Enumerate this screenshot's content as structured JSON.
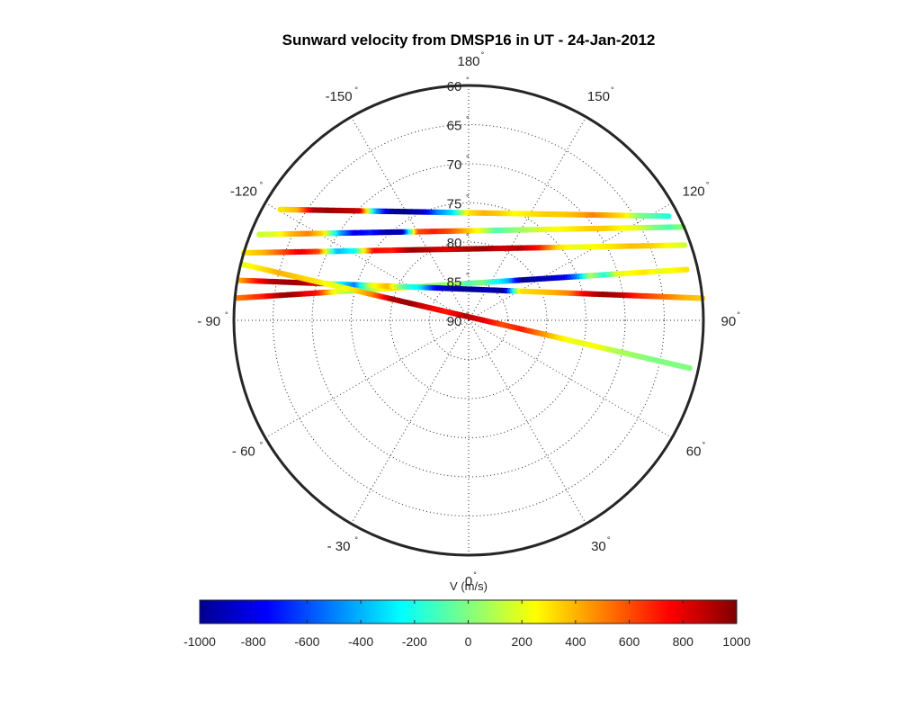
{
  "chart_data": {
    "type": "polar-scatter",
    "title": "Sunward velocity from DMSP16 in UT - 24-Jan-2012",
    "radial_axis": {
      "quantity": "magnetic latitude",
      "range": [
        60,
        90
      ],
      "tick_labels": [
        "60",
        "65",
        "70",
        "75",
        "80",
        "85",
        "90"
      ],
      "degree_symbol": "°"
    },
    "angular_axis": {
      "tick_values": [
        180,
        150,
        120,
        90,
        60,
        30,
        0,
        -30,
        -60,
        -90,
        -120,
        -150
      ],
      "tick_labels": [
        "180",
        "150",
        "120",
        "90",
        "60",
        "30",
        "0",
        "- 30",
        "- 60",
        "- 90",
        "-120",
        "-150"
      ],
      "zero_position": "bottom",
      "positive_direction": "counterclockwise",
      "grid": "dotted"
    },
    "colorbar": {
      "label": "V (m/s)",
      "colormap": "jet",
      "range": [
        -1000,
        1000
      ],
      "tick_labels": [
        "-1000",
        "-800",
        "-600",
        "-400",
        "-200",
        "0",
        "200",
        "400",
        "600",
        "800",
        "1000"
      ],
      "position": "bottom"
    },
    "colormap_stops": [
      "#00008f",
      "#0000ff",
      "#0080ff",
      "#00ffff",
      "#80ff80",
      "#ffff00",
      "#ff8000",
      "#ff0000",
      "#800000"
    ],
    "passes": [
      {
        "start": [
          109.2,
          60.8
        ],
        "end": [
          -106.7,
          60.0
        ],
        "values": [
          150,
          250,
          350,
          380,
          300,
          250,
          200,
          320,
          700,
          900,
          850,
          950,
          900,
          800,
          900,
          950,
          700,
          750,
          -200,
          -400,
          600,
          800,
          600,
          400,
          300
        ]
      },
      {
        "start": [
          113.5,
          60.1
        ],
        "end": [
          -112.3,
          61.1
        ],
        "values": [
          50,
          -100,
          0,
          200,
          250,
          350,
          350,
          300,
          250,
          200,
          100,
          0,
          -100,
          200,
          400,
          600,
          700,
          600,
          -900,
          -950,
          -700,
          -800,
          -400,
          300,
          500,
          400,
          200,
          150
        ]
      },
      {
        "start": [
          117.5,
          61.2
        ],
        "end": [
          -120.5,
          62.1
        ],
        "values": [
          -200,
          -100,
          0,
          300,
          400,
          500,
          400,
          350,
          350,
          300,
          250,
          350,
          400,
          300,
          -300,
          -500,
          -900,
          -1000,
          -950,
          -400,
          850,
          900,
          950,
          900,
          400,
          300
        ]
      },
      {
        "start": [
          -95.5,
          60.3
        ],
        "end": [
          103.1,
          61.4
        ],
        "values": [
          500,
          600,
          700,
          900,
          950,
          800,
          700,
          300,
          100,
          -200,
          100,
          300,
          300,
          200,
          100,
          0,
          100,
          -100,
          0,
          -200,
          -400,
          -1000,
          -950,
          -900,
          -800,
          -500,
          100,
          -200,
          200,
          250,
          300,
          200,
          250,
          300
        ]
      },
      {
        "start": [
          -99.9,
          60.3
        ],
        "end": [
          95.4,
          60.0
        ],
        "values": [
          400,
          700,
          900,
          950,
          900,
          700,
          -200,
          -500,
          200,
          400,
          -100,
          -300,
          -800,
          -950,
          -1000,
          -900,
          -1000,
          300,
          350,
          400,
          500,
          800,
          950,
          900,
          700,
          600,
          500,
          400,
          350
        ]
      },
      {
        "start": [
          -103.9,
          60.3
        ],
        "end": [
          77.8,
          61.1
        ],
        "values": [
          200,
          300,
          400,
          350,
          300,
          200,
          300,
          500,
          900,
          950,
          800,
          700,
          900,
          800,
          600,
          700,
          500,
          300,
          200,
          250,
          100,
          50,
          0,
          0,
          0
        ]
      }
    ]
  }
}
